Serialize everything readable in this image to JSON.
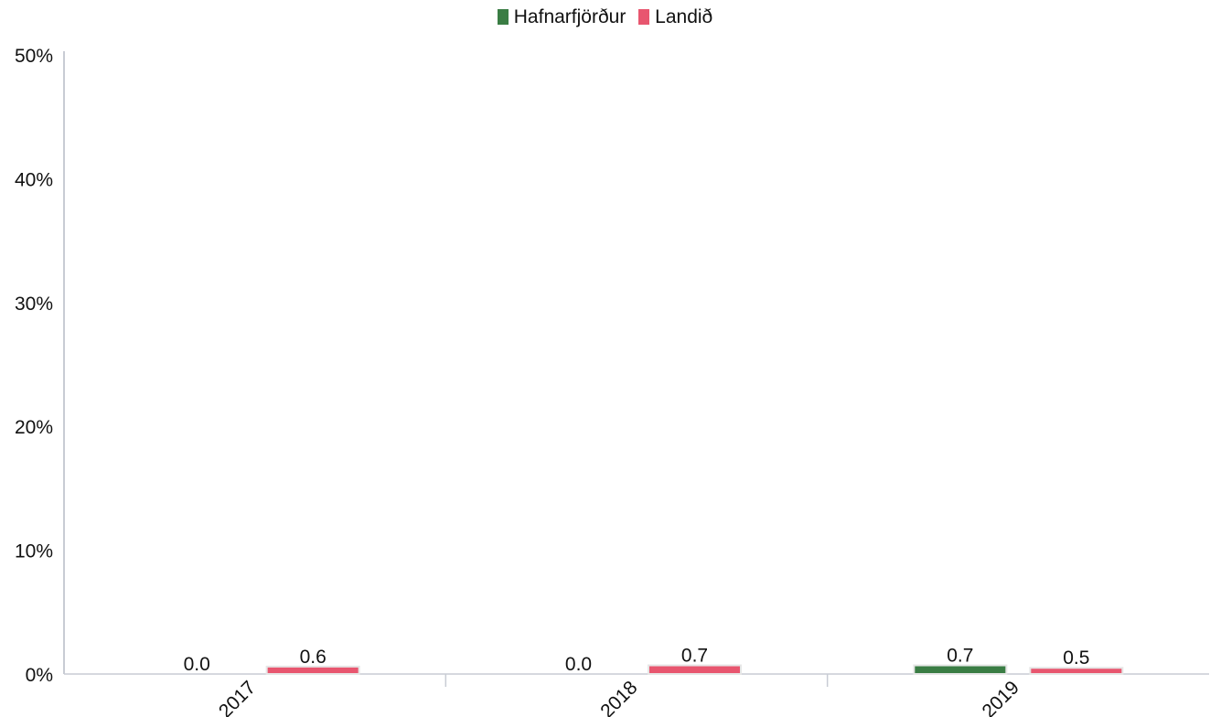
{
  "chart_data": {
    "type": "bar",
    "categories": [
      "2017",
      "2018",
      "2019"
    ],
    "series": [
      {
        "name": "Hafnarfjörður",
        "color": "#3a7d44",
        "values": [
          0.0,
          0.0,
          0.7
        ],
        "labels": [
          "0.0",
          "0.0",
          "0.7"
        ]
      },
      {
        "name": "Landið",
        "color": "#e8566f",
        "values": [
          0.6,
          0.7,
          0.5
        ],
        "labels": [
          "0.6",
          "0.7",
          "0.5"
        ]
      }
    ],
    "ylim": [
      0,
      50
    ],
    "yticks": [
      0,
      10,
      20,
      30,
      40,
      50
    ],
    "ytick_labels": [
      "0%",
      "10%",
      "20%",
      "30%",
      "40%",
      "50%"
    ],
    "ylabel_suffix": "%",
    "legend_position": "top-center",
    "grid": false,
    "title": "",
    "xlabel": "",
    "ylabel": ""
  }
}
